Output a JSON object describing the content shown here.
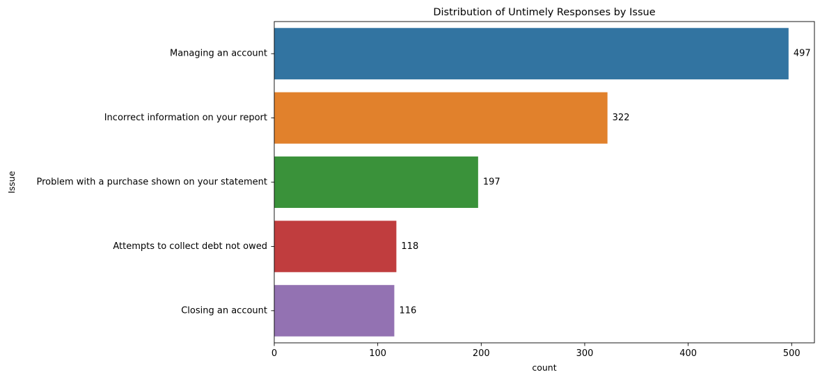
{
  "chart_data": {
    "type": "bar",
    "orientation": "horizontal",
    "title": "Distribution of Untimely Responses by Issue",
    "xlabel": "count",
    "ylabel": "Issue",
    "categories": [
      "Managing an account",
      "Incorrect information on your report",
      "Problem with a purchase shown on your statement",
      "Attempts to collect debt not owed",
      "Closing an account"
    ],
    "values": [
      497,
      322,
      197,
      118,
      116
    ],
    "data_labels": [
      "497",
      "322",
      "197",
      "118",
      "116"
    ],
    "colors": [
      "#3274a1",
      "#e1812c",
      "#3a923a",
      "#c03d3e",
      "#9372b2"
    ],
    "xlim": [
      0,
      522
    ],
    "xticks": [
      0,
      100,
      200,
      300,
      400,
      500
    ],
    "xtick_labels": [
      "0",
      "100",
      "200",
      "300",
      "400",
      "500"
    ],
    "grid": false,
    "legend": "none"
  }
}
